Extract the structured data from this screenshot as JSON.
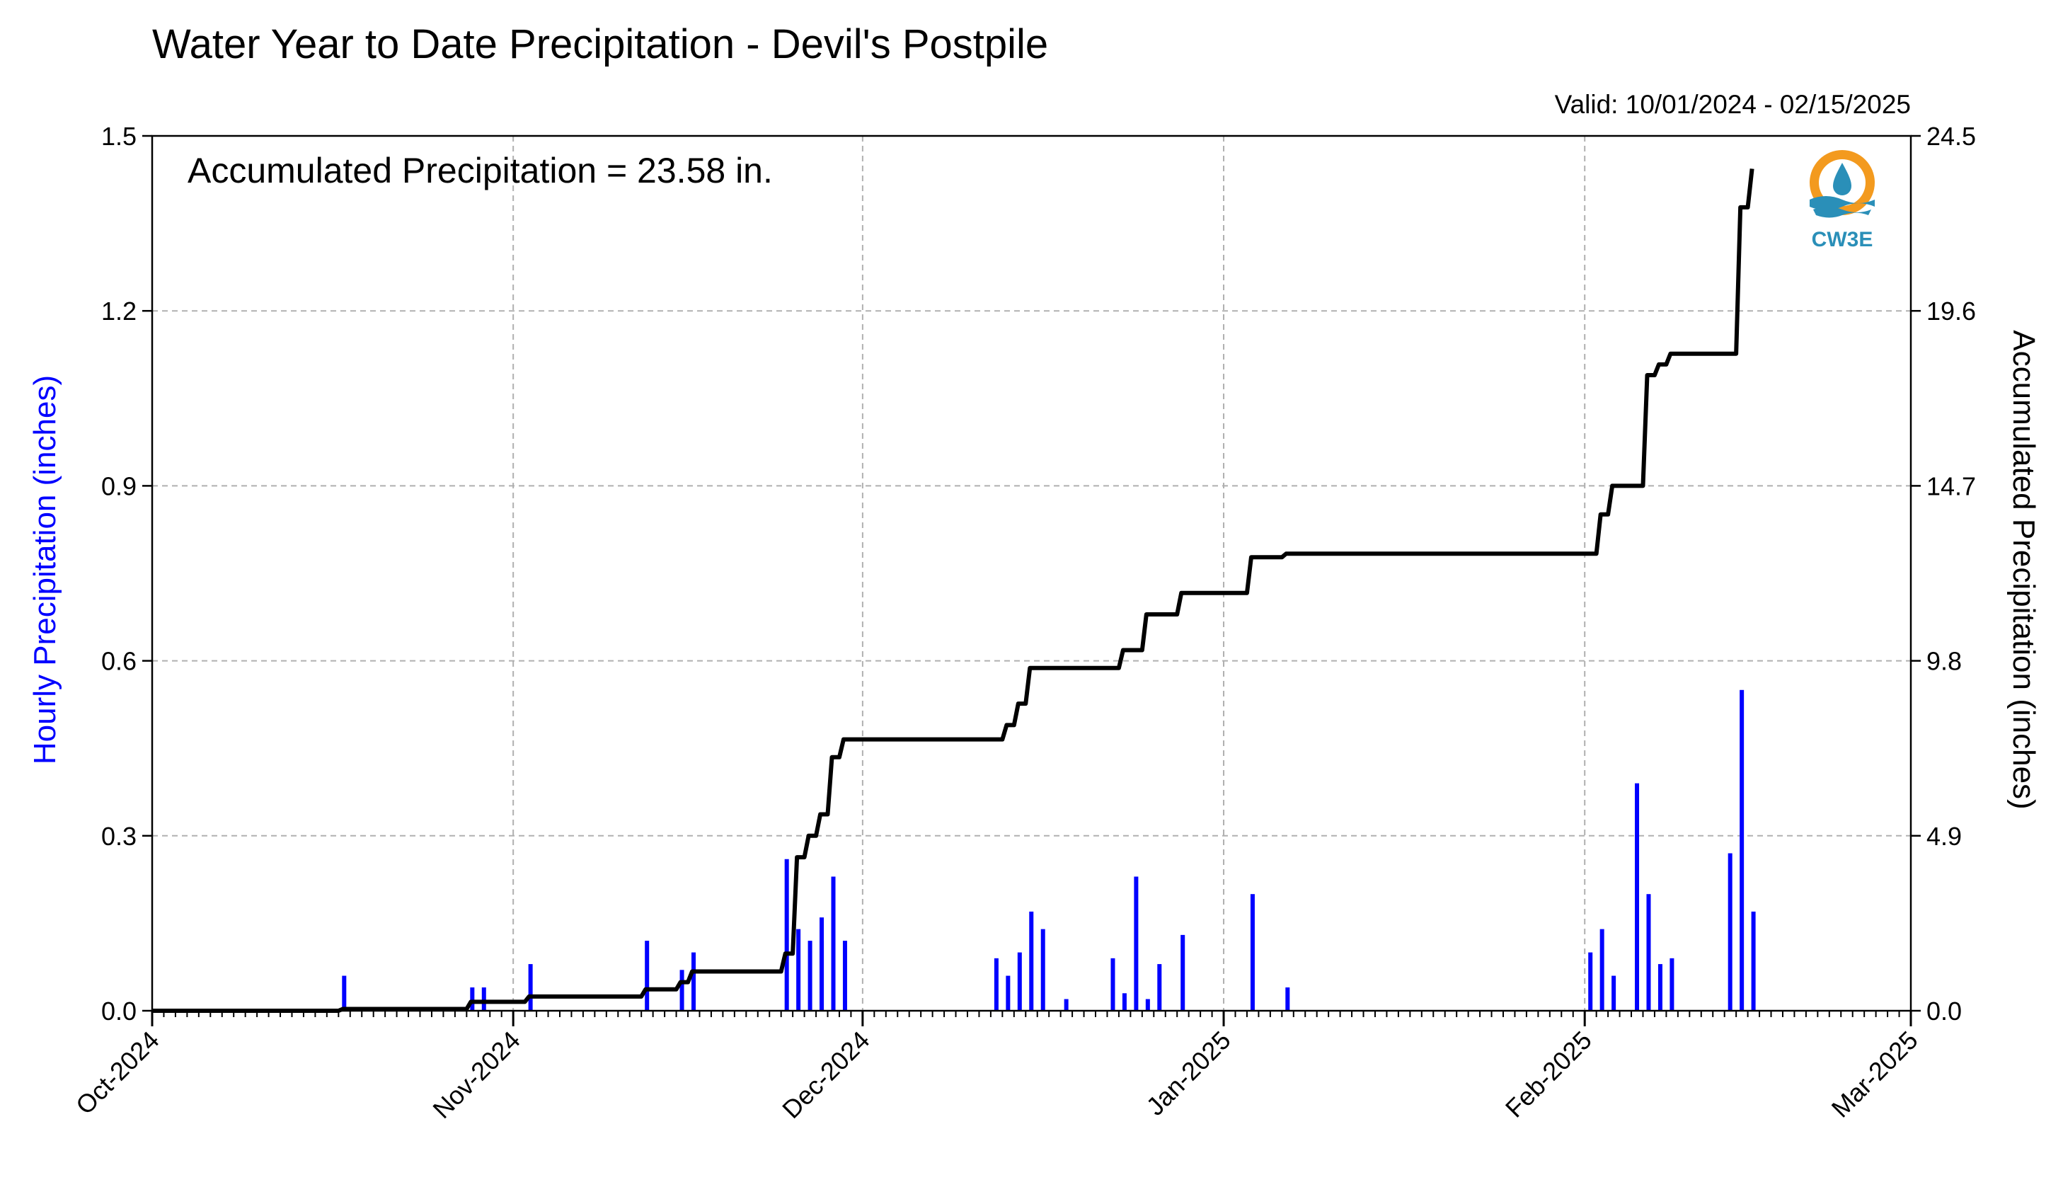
{
  "header": {
    "title": "Water Year to Date Precipitation - Devil's Postpile",
    "valid": "Valid: 10/01/2024 - 02/15/2025",
    "annotation": "Accumulated Precipitation = 23.58 in.",
    "logo_text": "CW3E"
  },
  "colors": {
    "hourly": "#0000ff",
    "accumulated": "#000000",
    "logo_orange": "#f39a1e",
    "logo_blue": "#2a8fb8"
  },
  "chart_data": {
    "type": "bar",
    "title": "Water Year to Date Precipitation - Devil's Postpile",
    "ylabel": "Hourly Precipitation (inches)",
    "y2label": "Accumulated Precipitation (inches)",
    "xlim": [
      "2024-10-01",
      "2025-03-01"
    ],
    "ylim": [
      0,
      1.5
    ],
    "y2lim": [
      0,
      24.5
    ],
    "yticks": [
      0.0,
      0.3,
      0.6,
      0.9,
      1.2,
      1.5
    ],
    "ytick_labels": [
      "0.0",
      "0.3",
      "0.6",
      "0.9",
      "1.2",
      "1.5"
    ],
    "y2ticks": [
      0.0,
      4.9,
      9.8,
      14.7,
      19.6,
      24.5
    ],
    "y2tick_labels": [
      "0.0",
      "4.9",
      "9.8",
      "14.7",
      "19.6",
      "24.5"
    ],
    "xticks": [
      "2024-10-01",
      "2024-11-01",
      "2024-12-01",
      "2025-01-01",
      "2025-02-01",
      "2025-03-01"
    ],
    "xtick_labels": [
      "Oct-2024",
      "Nov-2024",
      "Dec-2024",
      "Jan-2025",
      "Feb-2025",
      "Mar-2025"
    ],
    "grid": true,
    "series": [
      {
        "name": "Hourly Precipitation",
        "axis": "left",
        "style": "bar",
        "x": [
          "2024-10-17",
          "2024-10-28",
          "2024-10-29",
          "2024-11-02",
          "2024-11-12",
          "2024-11-15",
          "2024-11-16",
          "2024-11-24",
          "2024-11-25",
          "2024-11-26",
          "2024-11-27",
          "2024-11-27",
          "2024-11-28",
          "2024-11-29",
          "2024-12-12",
          "2024-12-13",
          "2024-12-14",
          "2024-12-15",
          "2024-12-16",
          "2024-12-18",
          "2024-12-22",
          "2024-12-23",
          "2024-12-24",
          "2024-12-25",
          "2024-12-26",
          "2024-12-28",
          "2025-01-03",
          "2025-01-06",
          "2025-02-01",
          "2025-02-02",
          "2025-02-03",
          "2025-02-05",
          "2025-02-06",
          "2025-02-07",
          "2025-02-08",
          "2025-02-13",
          "2025-02-14",
          "2025-02-15"
        ],
        "values": [
          0.06,
          0.04,
          0.04,
          0.08,
          0.12,
          0.07,
          0.1,
          0.26,
          0.14,
          0.12,
          0.16,
          0.12,
          0.23,
          0.12,
          0.09,
          0.06,
          0.1,
          0.17,
          0.14,
          0.02,
          0.09,
          0.03,
          0.23,
          0.02,
          0.08,
          0.13,
          0.2,
          0.04,
          0.1,
          0.14,
          0.06,
          0.39,
          0.2,
          0.08,
          0.09,
          0.27,
          0.55,
          0.17
        ]
      },
      {
        "name": "Accumulated Precipitation",
        "axis": "right",
        "style": "line",
        "x": [
          "2024-10-01",
          "2024-10-17",
          "2024-10-28",
          "2024-11-02",
          "2024-11-12",
          "2024-11-15",
          "2024-11-16",
          "2024-11-24",
          "2024-11-25",
          "2024-11-26",
          "2024-11-27",
          "2024-11-28",
          "2024-11-29",
          "2024-12-12",
          "2024-12-13",
          "2024-12-14",
          "2024-12-15",
          "2024-12-22",
          "2024-12-23",
          "2024-12-25",
          "2024-12-28",
          "2025-01-03",
          "2025-01-06",
          "2025-02-01",
          "2025-02-02",
          "2025-02-03",
          "2025-02-05",
          "2025-02-06",
          "2025-02-07",
          "2025-02-08",
          "2025-02-13",
          "2025-02-14",
          "2025-02-15"
        ],
        "values": [
          0.0,
          0.05,
          0.25,
          0.4,
          0.6,
          0.8,
          1.1,
          1.6,
          4.3,
          4.9,
          5.5,
          7.1,
          7.6,
          7.6,
          8.0,
          8.6,
          9.6,
          9.6,
          10.1,
          11.1,
          11.7,
          12.7,
          12.8,
          12.8,
          13.9,
          14.7,
          14.7,
          17.8,
          18.1,
          18.4,
          18.4,
          22.5,
          23.58
        ]
      }
    ]
  }
}
